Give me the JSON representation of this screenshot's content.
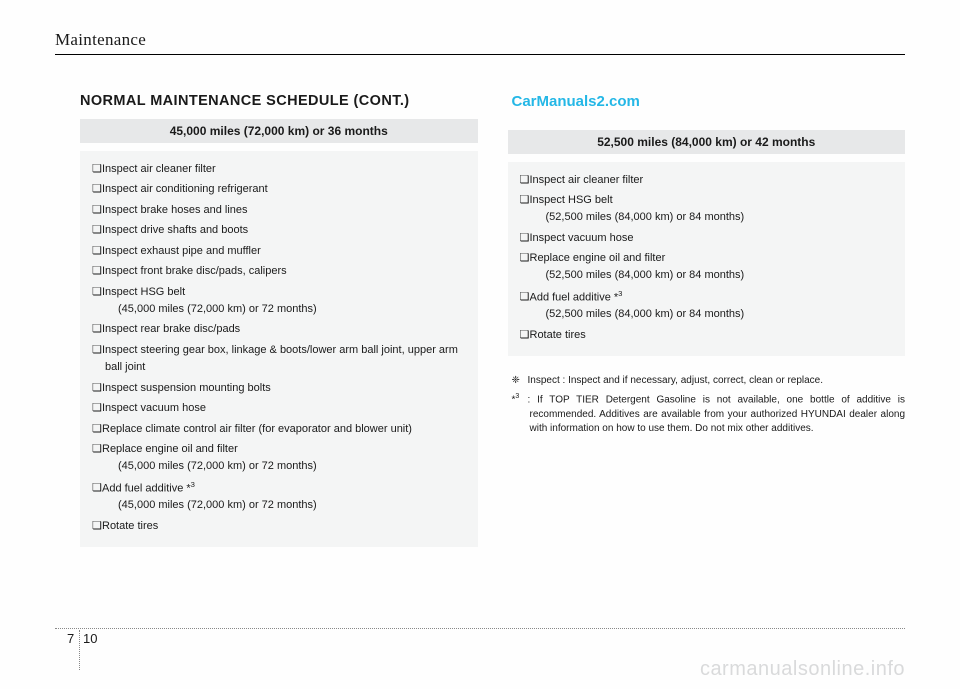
{
  "header": {
    "title": "Maintenance"
  },
  "watermark_top": "CarManuals2.com",
  "watermark_bottom": "carmanualsonline.info",
  "section_heading": "NORMAL MAINTENANCE SCHEDULE (CONT.)",
  "left": {
    "interval": "45,000 miles (72,000 km) or 36 months",
    "tasks": [
      {
        "text": "Inspect air cleaner filter"
      },
      {
        "text": "Inspect air conditioning refrigerant"
      },
      {
        "text": "Inspect brake hoses and lines"
      },
      {
        "text": "Inspect drive shafts and boots"
      },
      {
        "text": "Inspect exhaust pipe and muffler"
      },
      {
        "text": "Inspect front brake disc/pads, calipers"
      },
      {
        "text": "Inspect HSG belt",
        "sub": "(45,000 miles (72,000 km) or 72 months)"
      },
      {
        "text": "Inspect rear brake disc/pads"
      },
      {
        "text": "Inspect steering gear box, linkage & boots/lower arm ball joint, upper arm ball joint"
      },
      {
        "text": "Inspect suspension mounting bolts"
      },
      {
        "text": "Inspect vacuum hose"
      },
      {
        "text": "Replace climate control air filter (for evaporator and blower unit)"
      },
      {
        "text": "Replace engine oil and filter",
        "sub": "(45,000 miles (72,000 km) or 72 months)"
      },
      {
        "text": "Add fuel additive *",
        "sup": "3",
        "sub": "(45,000 miles (72,000 km) or 72 months)"
      },
      {
        "text": "Rotate tires"
      }
    ]
  },
  "right": {
    "interval": "52,500 miles (84,000 km) or 42 months",
    "tasks": [
      {
        "text": "Inspect air cleaner filter"
      },
      {
        "text": "Inspect HSG belt",
        "sub": "(52,500 miles (84,000 km) or 84 months)"
      },
      {
        "text": "Inspect vacuum hose"
      },
      {
        "text": "Replace engine oil and filter",
        "sub": "(52,500 miles (84,000 km) or 84 months)"
      },
      {
        "text": "Add fuel additive *",
        "sup": "3",
        "sub": "(52,500 miles (84,000 km) or 84 months)"
      },
      {
        "text": "Rotate tires"
      }
    ]
  },
  "notes": [
    {
      "marker": "❈",
      "text": "Inspect : Inspect and if necessary, adjust, correct, clean or replace."
    },
    {
      "marker": "*",
      "sup": "3",
      "text": ": If TOP TIER Detergent Gasoline is not available, one bottle of additive is recommended. Additives are available from your authorized HYUNDAI dealer along with information on how to use them. Do not mix other additives."
    }
  ],
  "footer": {
    "left_num": "7",
    "right_num": "10"
  },
  "colors": {
    "watermark_top": "#24b7e6",
    "watermark_bottom": "#d9dadb",
    "interval_bg": "#e7e8e9",
    "tasks_bg": "#f4f5f5",
    "text": "#1a1a1a"
  }
}
